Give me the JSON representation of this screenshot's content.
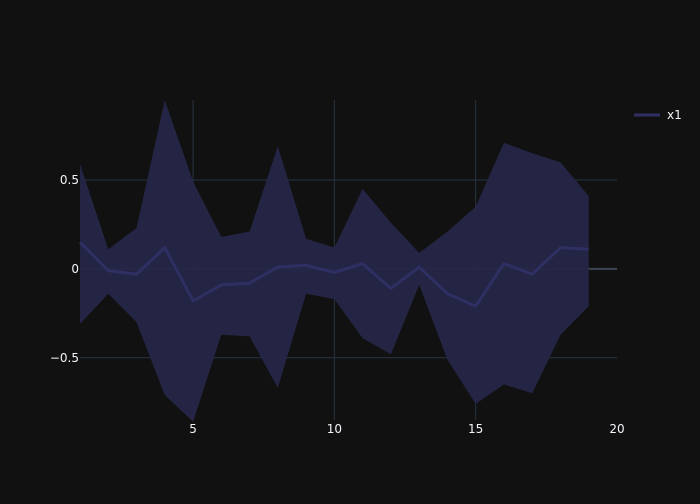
{
  "chart_data": {
    "type": "line",
    "title": "",
    "xlabel": "",
    "ylabel": "",
    "xlim": [
      1,
      20
    ],
    "ylim": [
      -0.85,
      0.95
    ],
    "grid": true,
    "legend_position": "top-right",
    "x_ticks": [
      5,
      10,
      15,
      20
    ],
    "x_tick_labels": [
      "5",
      "10",
      "15",
      "20"
    ],
    "y_ticks": [
      0.5,
      0,
      -0.5
    ],
    "y_tick_labels": [
      "0.5",
      "0",
      "−0.5"
    ],
    "x": [
      1,
      2,
      3,
      4,
      5,
      6,
      7,
      8,
      9,
      10,
      11,
      12,
      13,
      14,
      15,
      16,
      17,
      18,
      19
    ],
    "series": [
      {
        "name": "x1",
        "color": "#2f2f63",
        "fill_color": "#262648",
        "values": [
          0.15,
          -0.01,
          -0.03,
          0.12,
          -0.18,
          -0.09,
          -0.08,
          0.01,
          0.02,
          -0.02,
          0.03,
          -0.11,
          0.01,
          -0.14,
          -0.21,
          0.03,
          -0.03,
          0.12,
          0.11
        ],
        "upper": [
          0.59,
          0.11,
          0.23,
          0.95,
          0.49,
          0.18,
          0.21,
          0.69,
          0.17,
          0.12,
          0.45,
          0.26,
          0.09,
          0.21,
          0.35,
          0.71,
          0.65,
          0.6,
          0.41
        ],
        "lower": [
          -0.31,
          -0.14,
          -0.3,
          -0.71,
          -0.86,
          -0.37,
          -0.38,
          -0.67,
          -0.14,
          -0.17,
          -0.39,
          -0.48,
          -0.09,
          -0.51,
          -0.76,
          -0.65,
          -0.7,
          -0.37,
          -0.21
        ]
      }
    ]
  },
  "colors": {
    "background": "#111111",
    "grid": "#283442",
    "zeroline": "#3a4652",
    "tick_text": "#f2f5fa"
  }
}
